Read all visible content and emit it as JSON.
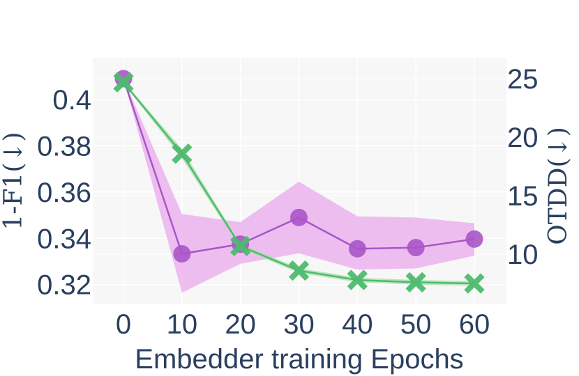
{
  "chart_data": {
    "type": "line",
    "title": "",
    "xlabel": "Embedder training Epochs",
    "ylabel_left": "1-F1(↓)",
    "ylabel_right": "OTDD(↓)",
    "x": [
      0,
      10,
      20,
      30,
      40,
      50,
      60
    ],
    "x_ticks": [
      "0",
      "10",
      "20",
      "30",
      "40",
      "50",
      "60"
    ],
    "y_left_ticks": [
      "0.32",
      "0.34",
      "0.36",
      "0.38",
      "0.4"
    ],
    "y_right_ticks": [
      "10",
      "15",
      "20",
      "25"
    ],
    "y_left_range": [
      0.3115,
      0.418
    ],
    "y_right_range": [
      5.72,
      26.8
    ],
    "grid": true,
    "series": [
      {
        "axis": "left",
        "marker": "circle",
        "color": "#a855c8",
        "band_color": "#e9a9ee",
        "values": [
          0.409,
          0.3333,
          0.3375,
          0.349,
          0.3355,
          0.336,
          0.3397
        ],
        "lower": [
          0.409,
          0.3165,
          0.329,
          0.3335,
          0.3265,
          0.327,
          0.3325
        ],
        "upper": [
          0.409,
          0.3505,
          0.347,
          0.3645,
          0.3495,
          0.349,
          0.3465
        ]
      },
      {
        "axis": "right",
        "marker": "x",
        "color": "#4dbb6e",
        "band_color": "#a8dfa8",
        "values": [
          24.7,
          18.6,
          10.7,
          8.6,
          7.8,
          7.6,
          7.5
        ],
        "lower": [
          24.6,
          18.2,
          10.5,
          8.4,
          7.6,
          7.4,
          7.3
        ],
        "upper": [
          24.8,
          19.0,
          10.9,
          8.8,
          8.0,
          7.8,
          7.7
        ]
      }
    ]
  }
}
